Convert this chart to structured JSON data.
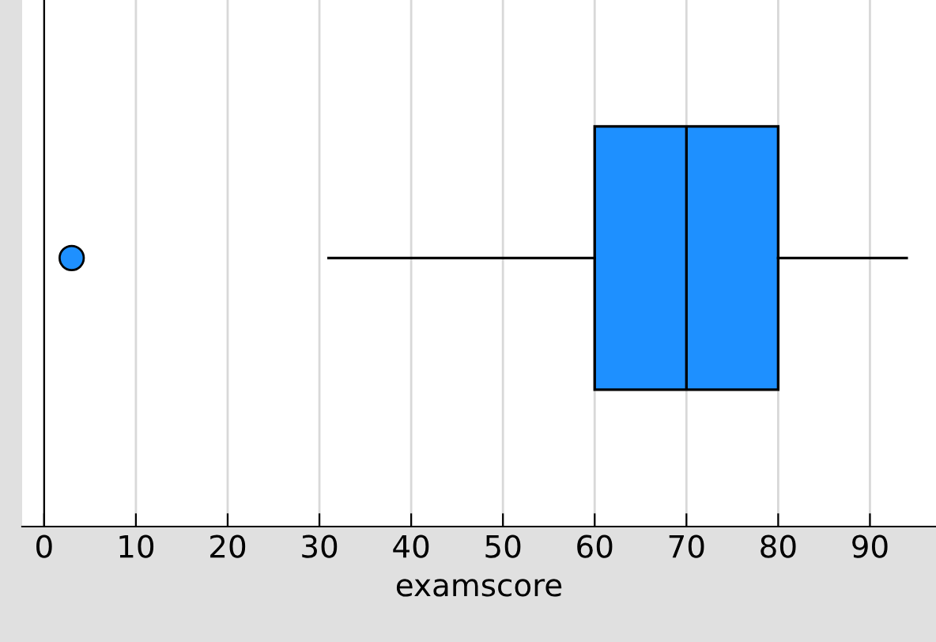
{
  "chart_data": {
    "type": "box",
    "orientation": "horizontal",
    "xlabel": "examscore",
    "categories": [
      null
    ],
    "series": [
      {
        "color": "#1e90ff",
        "boxes": [
          {
            "low": 31,
            "q1": 60,
            "median": 70,
            "q3": 80,
            "high": 94,
            "outliers": [
              3
            ]
          }
        ]
      }
    ],
    "xlim": [
      -2.4,
      97.2
    ],
    "xticks": [
      0,
      10,
      20,
      30,
      40,
      50,
      60,
      70,
      80,
      90
    ],
    "grid": "x"
  }
}
